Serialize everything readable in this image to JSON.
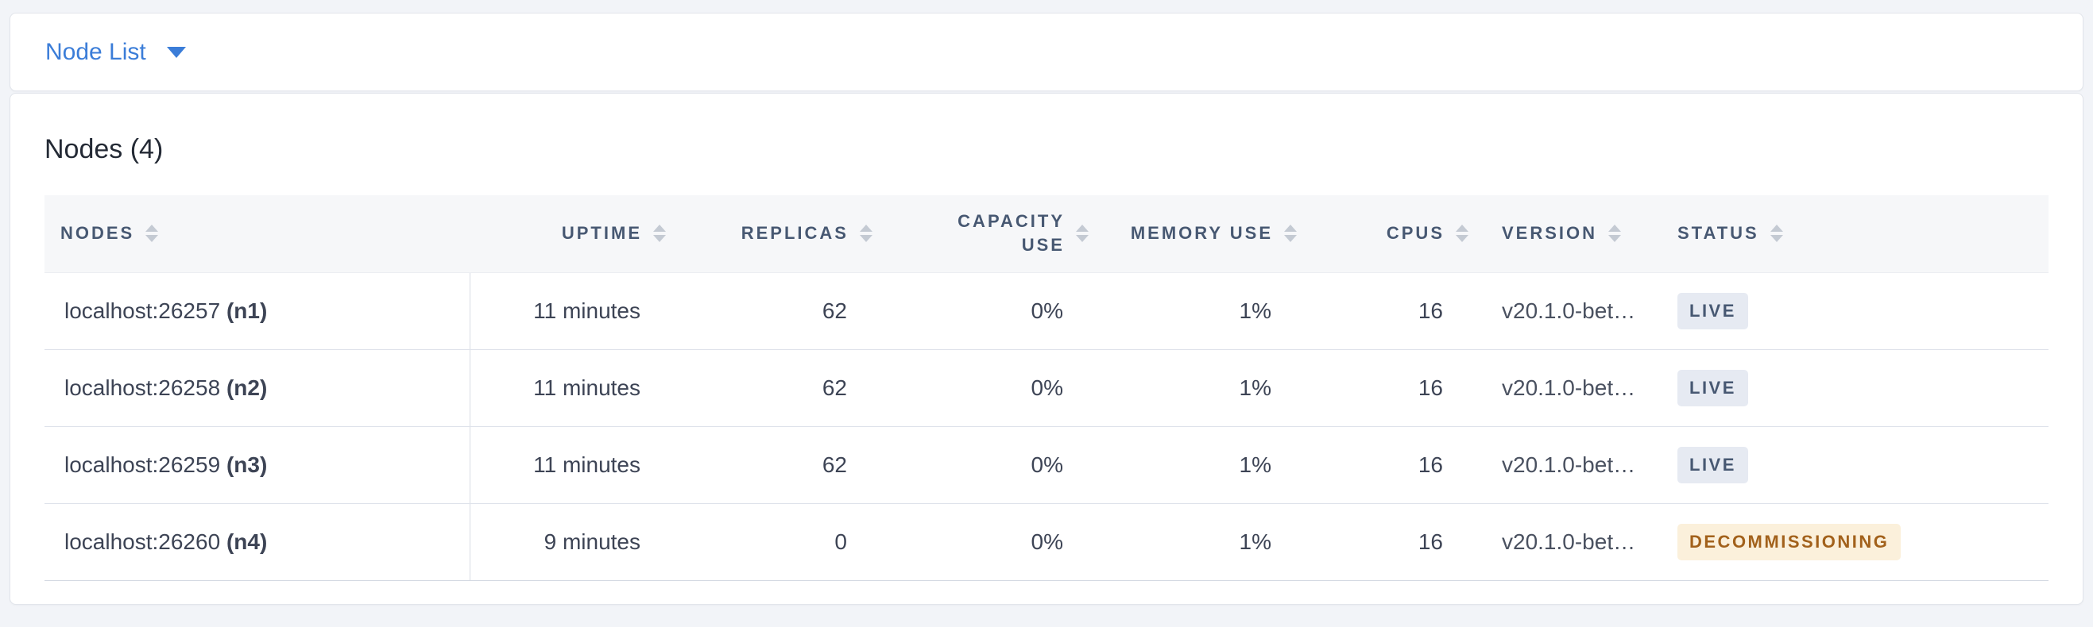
{
  "toolbar": {
    "view_selector": {
      "label": "Node List",
      "icon": "caret-down-icon"
    }
  },
  "panel": {
    "title": "Nodes (4)"
  },
  "table": {
    "columns": [
      {
        "key": "nodes",
        "label": "Nodes",
        "align": "left"
      },
      {
        "key": "uptime",
        "label": "Uptime",
        "align": "right"
      },
      {
        "key": "replicas",
        "label": "Replicas",
        "align": "right"
      },
      {
        "key": "capacity_use",
        "label": "Capacity Use",
        "align": "right",
        "two_line": true
      },
      {
        "key": "memory_use",
        "label": "Memory Use",
        "align": "right"
      },
      {
        "key": "cpus",
        "label": "CPUs",
        "align": "right"
      },
      {
        "key": "version",
        "label": "Version",
        "align": "left"
      },
      {
        "key": "status",
        "label": "Status",
        "align": "left"
      }
    ],
    "rows": [
      {
        "nodes": "localhost:26257",
        "node_id": "(n1)",
        "uptime": "11 minutes",
        "replicas": "62",
        "capacity_use": "0%",
        "memory_use": "1%",
        "cpus": "16",
        "version": "v20.1.0-bet…",
        "status": "LIVE",
        "status_type": "live"
      },
      {
        "nodes": "localhost:26258",
        "node_id": "(n2)",
        "uptime": "11 minutes",
        "replicas": "62",
        "capacity_use": "0%",
        "memory_use": "1%",
        "cpus": "16",
        "version": "v20.1.0-bet…",
        "status": "LIVE",
        "status_type": "live"
      },
      {
        "nodes": "localhost:26259",
        "node_id": "(n3)",
        "uptime": "11 minutes",
        "replicas": "62",
        "capacity_use": "0%",
        "memory_use": "1%",
        "cpus": "16",
        "version": "v20.1.0-bet…",
        "status": "LIVE",
        "status_type": "live"
      },
      {
        "nodes": "localhost:26260",
        "node_id": "(n4)",
        "uptime": "9 minutes",
        "replicas": "0",
        "capacity_use": "0%",
        "memory_use": "1%",
        "cpus": "16",
        "version": "v20.1.0-bet…",
        "status": "DECOMMISSIONING",
        "status_type": "decommissioning"
      }
    ]
  },
  "colors": {
    "accent_blue": "#3B7DD8",
    "status_live_bg": "#E6EAF2",
    "status_live_text": "#475872",
    "status_decommissioning_bg": "#FBF0DB",
    "status_decommissioning_text": "#A2611B"
  }
}
